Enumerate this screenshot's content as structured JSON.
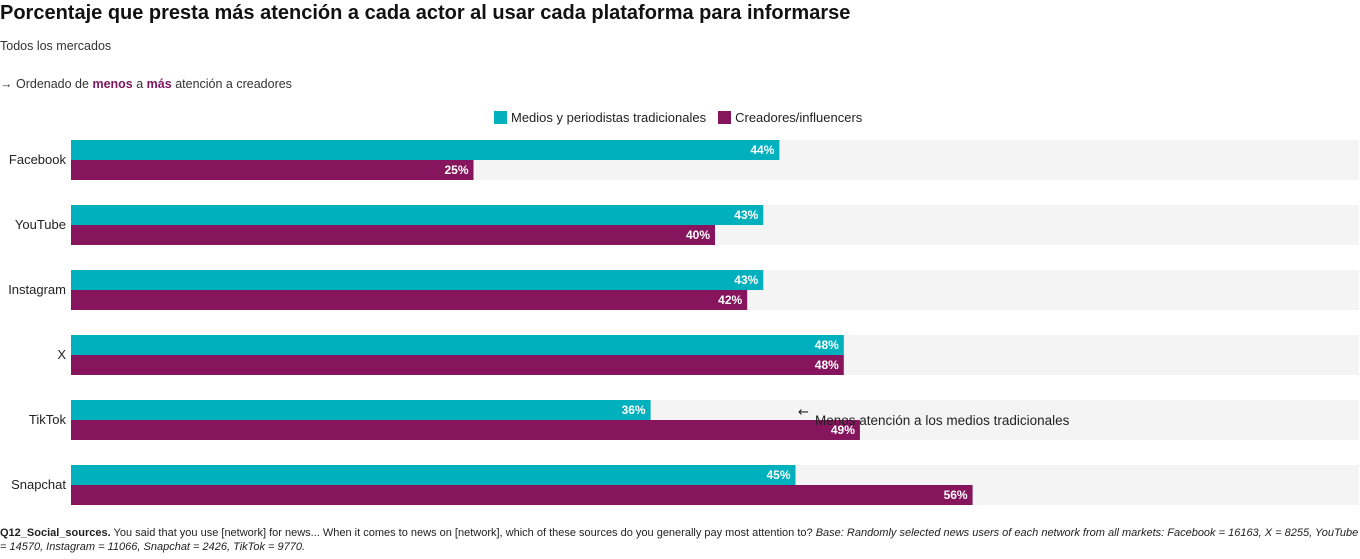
{
  "chart_data": {
    "type": "bar",
    "orientation": "horizontal",
    "title": "Porcentaje que presta más atención a cada actor al usar cada plataforma para informarse",
    "subtitle": "Todos los mercados",
    "sort_note": {
      "arrow": "→",
      "prefix": "Ordenado de",
      "word1": "menos",
      "middle": "a",
      "word2": "más",
      "suffix": "atención a creadores"
    },
    "categories": [
      "Facebook",
      "YouTube",
      "Instagram",
      "X",
      "TikTok",
      "Snapchat"
    ],
    "series": [
      {
        "name": "Medios y periodistas tradicionales",
        "color": "#00b0bd",
        "values": [
          44,
          43,
          43,
          48,
          36,
          45
        ]
      },
      {
        "name": "Creadores/influencers",
        "color": "#86155e",
        "values": [
          25,
          40,
          42,
          48,
          49,
          56
        ]
      }
    ],
    "value_suffix": "%",
    "xlim": [
      0,
      80
    ],
    "legend_position": "top",
    "background_track_color": "#f4f4f4",
    "annotation": {
      "category": "TikTok",
      "text": "Menos atención a los medios tradicionales",
      "arrow": "←"
    }
  },
  "footnote": {
    "label": "Q12_Social_sources.",
    "question": "You said that you use [network] for news... When it comes to news on [network], which of these sources do you generally pay most attention to?",
    "base": "Base: Randomly selected news users of each network from all markets: Facebook = 16163, X = 8255, YouTube = 14570, Instagram = 11066, Snapchat = 2426, TikTok = 9770."
  }
}
